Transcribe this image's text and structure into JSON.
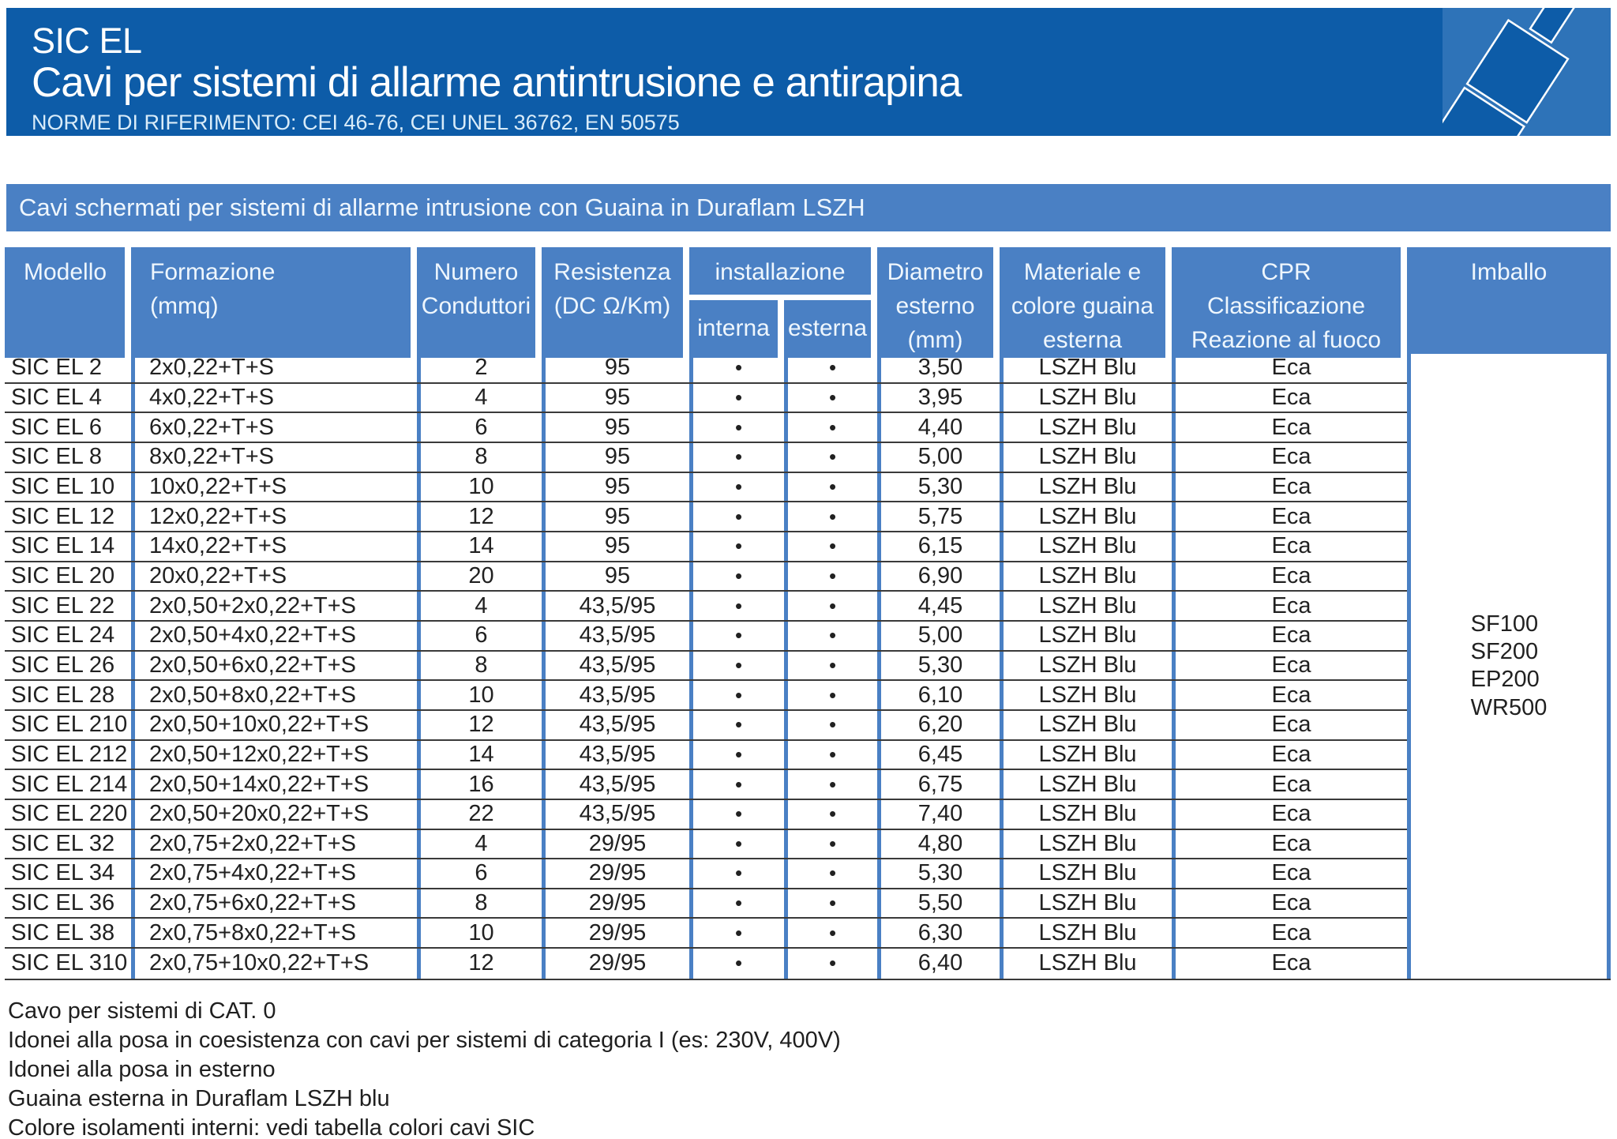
{
  "header": {
    "title": "SIC EL",
    "subtitle": "Cavi per sistemi di allarme antintrusione e antirapina",
    "norms": "NORME DI RIFERIMENTO: CEI 46-76, CEI UNEL 36762, EN 50575"
  },
  "section_title": "Cavi schermati per sistemi di allarme intrusione con Guaina in Duraflam LSZH",
  "colors": {
    "banner_blue": "#0d5ca8",
    "box_blue": "#2e73b8",
    "panel_blue": "#4a80c4",
    "row_line": "#3a3a3a",
    "text_dark": "#212121",
    "header_text": "#eef6fd"
  },
  "table": {
    "columns": {
      "modello": "Modello",
      "formazione": "Formazione\n(mmq)",
      "numero": "Numero\nConduttori",
      "resistenza": "Resistenza\n(DC Ω/Km)",
      "installazione": "installazione",
      "interna": "interna",
      "esterna": "esterna",
      "diametro": "Diametro\nesterno\n(mm)",
      "materiale": "Materiale e\ncolore guaina\nesterna",
      "cpr": "CPR\nClassificazione\nReazione al fuoco",
      "imballo": "Imballo"
    },
    "rows": [
      [
        "SIC EL 2",
        "2x0,22+T+S",
        "2",
        "95",
        "•",
        "•",
        "3,50",
        "LSZH Blu",
        "Eca"
      ],
      [
        "SIC EL 4",
        "4x0,22+T+S",
        "4",
        "95",
        "•",
        "•",
        "3,95",
        "LSZH Blu",
        "Eca"
      ],
      [
        "SIC EL 6",
        "6x0,22+T+S",
        "6",
        "95",
        "•",
        "•",
        "4,40",
        "LSZH Blu",
        "Eca"
      ],
      [
        "SIC EL 8",
        "8x0,22+T+S",
        "8",
        "95",
        "•",
        "•",
        "5,00",
        "LSZH Blu",
        "Eca"
      ],
      [
        "SIC EL 10",
        "10x0,22+T+S",
        "10",
        "95",
        "•",
        "•",
        "5,30",
        "LSZH Blu",
        "Eca"
      ],
      [
        "SIC EL 12",
        "12x0,22+T+S",
        "12",
        "95",
        "•",
        "•",
        "5,75",
        "LSZH Blu",
        "Eca"
      ],
      [
        "SIC EL 14",
        "14x0,22+T+S",
        "14",
        "95",
        "•",
        "•",
        "6,15",
        "LSZH Blu",
        "Eca"
      ],
      [
        "SIC EL 20",
        "20x0,22+T+S",
        "20",
        "95",
        "•",
        "•",
        "6,90",
        "LSZH Blu",
        "Eca"
      ],
      [
        "SIC EL 22",
        "2x0,50+2x0,22+T+S",
        "4",
        "43,5/95",
        "•",
        "•",
        "4,45",
        "LSZH Blu",
        "Eca"
      ],
      [
        "SIC EL 24",
        "2x0,50+4x0,22+T+S",
        "6",
        "43,5/95",
        "•",
        "•",
        "5,00",
        "LSZH Blu",
        "Eca"
      ],
      [
        "SIC EL 26",
        "2x0,50+6x0,22+T+S",
        "8",
        "43,5/95",
        "•",
        "•",
        "5,30",
        "LSZH Blu",
        "Eca"
      ],
      [
        "SIC EL 28",
        "2x0,50+8x0,22+T+S",
        "10",
        "43,5/95",
        "•",
        "•",
        "6,10",
        "LSZH Blu",
        "Eca"
      ],
      [
        "SIC EL 210",
        "2x0,50+10x0,22+T+S",
        "12",
        "43,5/95",
        "•",
        "•",
        "6,20",
        "LSZH Blu",
        "Eca"
      ],
      [
        "SIC EL 212",
        "2x0,50+12x0,22+T+S",
        "14",
        "43,5/95",
        "•",
        "•",
        "6,45",
        "LSZH Blu",
        "Eca"
      ],
      [
        "SIC EL 214",
        "2x0,50+14x0,22+T+S",
        "16",
        "43,5/95",
        "•",
        "•",
        "6,75",
        "LSZH Blu",
        "Eca"
      ],
      [
        "SIC EL 220",
        "2x0,50+20x0,22+T+S",
        "22",
        "43,5/95",
        "•",
        "•",
        "7,40",
        "LSZH Blu",
        "Eca"
      ],
      [
        "SIC EL 32",
        "2x0,75+2x0,22+T+S",
        "4",
        "29/95",
        "•",
        "•",
        "4,80",
        "LSZH Blu",
        "Eca"
      ],
      [
        "SIC EL 34",
        "2x0,75+4x0,22+T+S",
        "6",
        "29/95",
        "•",
        "•",
        "5,30",
        "LSZH Blu",
        "Eca"
      ],
      [
        "SIC EL 36",
        "2x0,75+6x0,22+T+S",
        "8",
        "29/95",
        "•",
        "•",
        "5,50",
        "LSZH Blu",
        "Eca"
      ],
      [
        "SIC EL 38",
        "2x0,75+8x0,22+T+S",
        "10",
        "29/95",
        "•",
        "•",
        "6,30",
        "LSZH Blu",
        "Eca"
      ],
      [
        "SIC EL 310",
        "2x0,75+10x0,22+T+S",
        "12",
        "29/95",
        "•",
        "•",
        "6,40",
        "LSZH Blu",
        "Eca"
      ]
    ],
    "imballo_packaging": [
      "SF100",
      "SF200",
      "EP200",
      "WR500"
    ]
  },
  "footnotes": [
    "Cavo per sistemi di CAT. 0",
    "Idonei alla posa in coesistenza con cavi per sistemi di categoria I (es: 230V, 400V)",
    "Idonei alla posa in esterno",
    "Guaina esterna in Duraflam LSZH blu",
    "Colore isolamenti interni: vedi tabella colori cavi SIC"
  ]
}
